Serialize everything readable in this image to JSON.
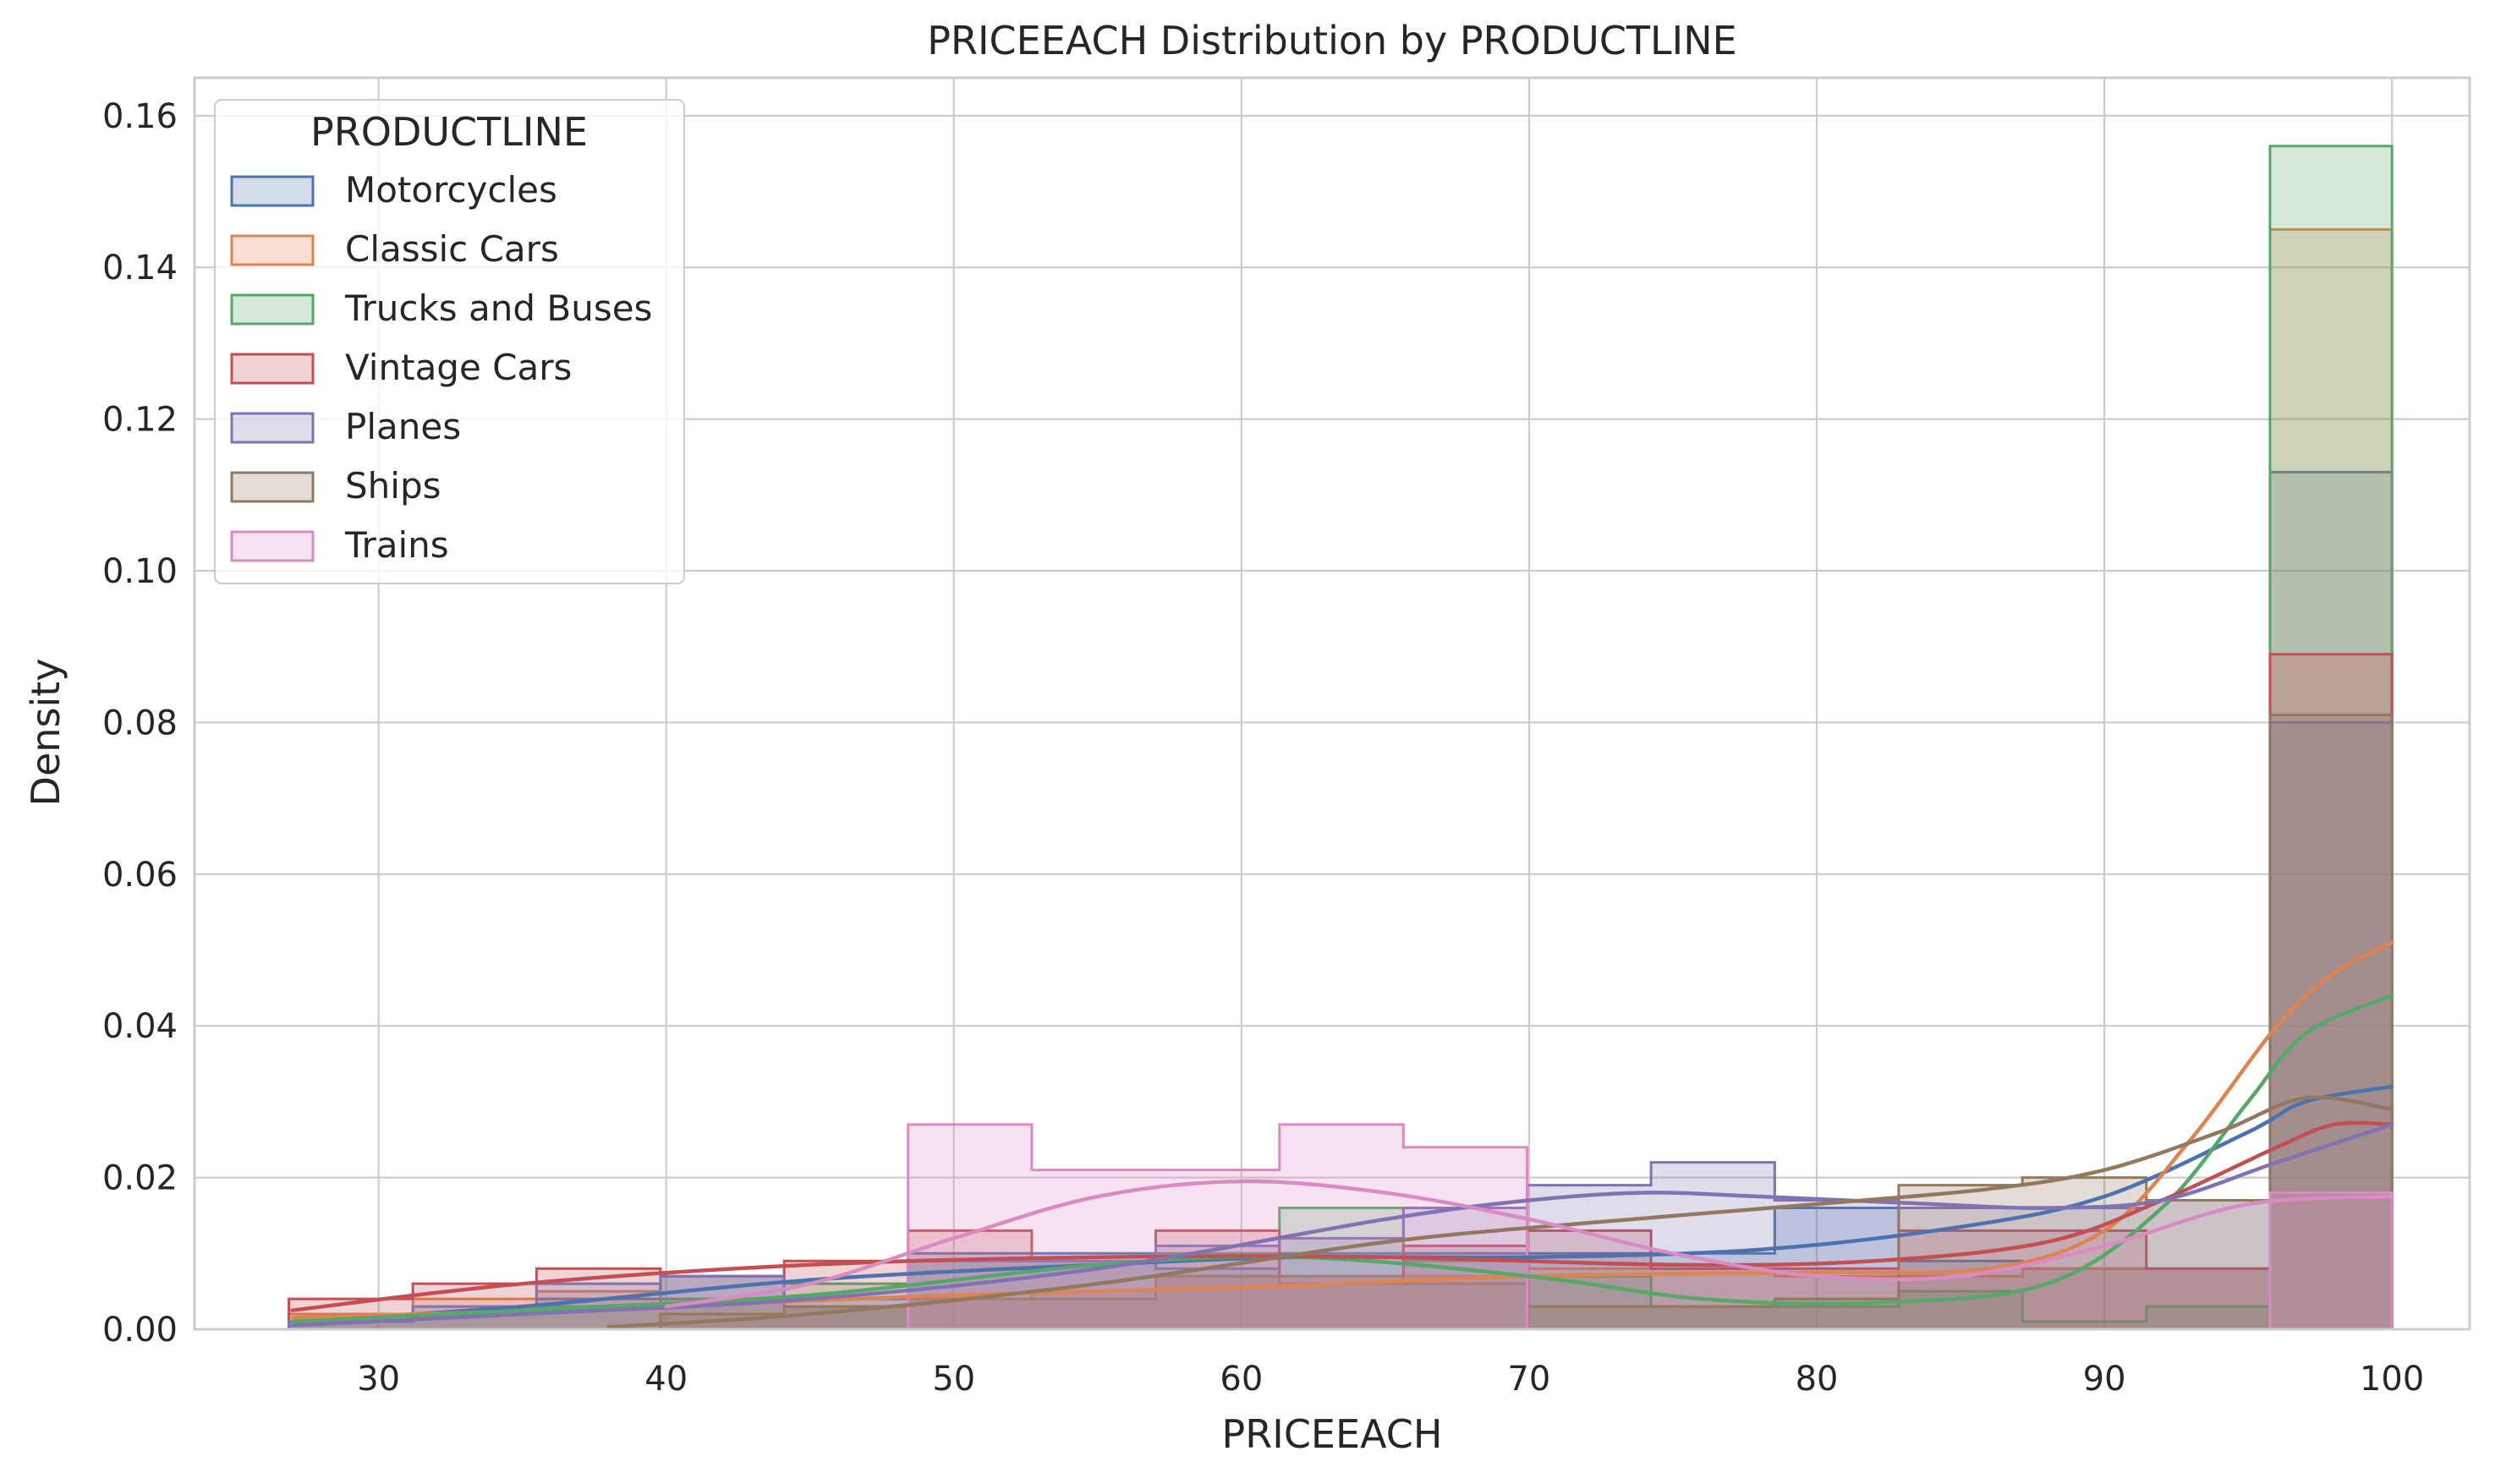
{
  "chart_data": {
    "type": "histogram",
    "title": "PRICEEACH Distribution by PRODUCTLINE",
    "xlabel": "PRICEEACH",
    "ylabel": "Density",
    "xlim": [
      23.6,
      102.7
    ],
    "ylim": [
      0,
      0.165
    ],
    "xticks": [
      30,
      40,
      50,
      60,
      70,
      80,
      90,
      100
    ],
    "xtick_labels": [
      "30",
      "40",
      "50",
      "60",
      "70",
      "80",
      "90",
      "100"
    ],
    "yticks": [
      0,
      0.02,
      0.04,
      0.06,
      0.08,
      0.1,
      0.12,
      0.14,
      0.16
    ],
    "ytick_labels": [
      "0.00",
      "0.02",
      "0.04",
      "0.06",
      "0.08",
      "0.10",
      "0.12",
      "0.14",
      "0.16"
    ],
    "grid": true,
    "legend": {
      "title": "PRODUCTLINE",
      "placement": "top-left"
    },
    "element": "step-filled",
    "kde": true,
    "bin_edges": [
      26.88,
      31.19,
      35.49,
      39.8,
      44.1,
      48.41,
      52.71,
      57.02,
      61.32,
      65.63,
      69.93,
      74.24,
      78.54,
      82.85,
      87.15,
      91.46,
      95.76,
      100.0
    ],
    "series": [
      {
        "name": "Motorcycles",
        "color": "#4c72b0",
        "density": [
          0.001,
          0.002,
          0.004,
          0.007,
          0.003,
          0.01,
          0.01,
          0.008,
          0.01,
          0.01,
          0.01,
          0.01,
          0.016,
          0.009,
          0.008,
          0.008,
          0.113
        ],
        "kde_x": [
          27,
          35,
          45,
          55,
          62,
          70,
          78,
          85,
          90,
          95,
          97,
          100
        ],
        "kde_y": [
          0.001,
          0.003,
          0.0065,
          0.0085,
          0.0095,
          0.0095,
          0.0105,
          0.0135,
          0.0175,
          0.026,
          0.03,
          0.032
        ]
      },
      {
        "name": "Classic Cars",
        "color": "#dd8452",
        "density": [
          0.002,
          0.004,
          0.005,
          0.004,
          0.003,
          0.004,
          0.005,
          0.007,
          0.006,
          0.007,
          0.008,
          0.008,
          0.007,
          0.007,
          0.008,
          0.008,
          0.145
        ],
        "kde_x": [
          27,
          40,
          50,
          60,
          70,
          80,
          86,
          90,
          93,
          96,
          98,
          100
        ],
        "kde_y": [
          0.0015,
          0.003,
          0.0045,
          0.0055,
          0.007,
          0.0075,
          0.008,
          0.013,
          0.025,
          0.04,
          0.047,
          0.051
        ]
      },
      {
        "name": "Trucks and Buses",
        "color": "#55a868",
        "density": [
          0.001,
          0.002,
          0.003,
          0.004,
          0.006,
          0.009,
          0.009,
          0.01,
          0.016,
          0.009,
          0.007,
          0.003,
          0.003,
          0.005,
          0.001,
          0.003,
          0.156
        ],
        "kde_x": [
          27,
          35,
          45,
          55,
          62,
          70,
          76,
          82,
          88,
          92,
          95,
          97,
          100
        ],
        "kde_y": [
          0.001,
          0.0025,
          0.0045,
          0.0085,
          0.0095,
          0.007,
          0.004,
          0.0035,
          0.006,
          0.016,
          0.03,
          0.039,
          0.044
        ]
      },
      {
        "name": "Vintage Cars",
        "color": "#c44e52",
        "density": [
          0.004,
          0.006,
          0.008,
          0.007,
          0.009,
          0.013,
          0.009,
          0.013,
          0.007,
          0.011,
          0.013,
          0.008,
          0.008,
          0.013,
          0.013,
          0.008,
          0.089
        ],
        "kde_x": [
          27,
          35,
          45,
          55,
          65,
          75,
          82,
          88,
          92,
          96,
          98,
          100
        ],
        "kde_y": [
          0.0025,
          0.006,
          0.0085,
          0.0095,
          0.0095,
          0.0085,
          0.009,
          0.0115,
          0.017,
          0.024,
          0.027,
          0.027
        ]
      },
      {
        "name": "Planes",
        "color": "#8172b3",
        "density": [
          0.001,
          0.003,
          0.006,
          0.007,
          0.004,
          0.009,
          0.009,
          0.011,
          0.012,
          0.016,
          0.019,
          0.022,
          0.017,
          0.016,
          0.016,
          0.017,
          0.08
        ],
        "kde_x": [
          27,
          35,
          45,
          55,
          65,
          70,
          74,
          78,
          84,
          88,
          92,
          96,
          100
        ],
        "kde_y": [
          0.0005,
          0.002,
          0.004,
          0.008,
          0.0145,
          0.017,
          0.018,
          0.0175,
          0.0165,
          0.016,
          0.017,
          0.022,
          0.027
        ]
      },
      {
        "name": "Ships",
        "color": "#937860",
        "density": [
          0.0,
          0.0,
          0.0,
          0.002,
          0.003,
          0.004,
          0.004,
          0.007,
          0.007,
          0.006,
          0.003,
          0.003,
          0.004,
          0.019,
          0.02,
          0.017,
          0.081
        ],
        "kde_x": [
          38,
          45,
          55,
          65,
          72,
          80,
          86,
          90,
          94,
          97,
          100
        ],
        "kde_y": [
          0.0003,
          0.002,
          0.006,
          0.0115,
          0.014,
          0.0165,
          0.0185,
          0.021,
          0.026,
          0.0305,
          0.029
        ]
      },
      {
        "name": "Trains",
        "color": "#da8bc3",
        "density": [
          0.0,
          0.0,
          0.0,
          0.0,
          0.0,
          0.027,
          0.021,
          0.021,
          0.027,
          0.024,
          0.0,
          0.0,
          0.0,
          0.0,
          0.0,
          0.0,
          0.018
        ],
        "kde_x": [
          40,
          45,
          50,
          55,
          60,
          65,
          70,
          75,
          80,
          85,
          90,
          95,
          100
        ],
        "kde_y": [
          0.003,
          0.006,
          0.012,
          0.0175,
          0.0195,
          0.018,
          0.0145,
          0.01,
          0.007,
          0.007,
          0.011,
          0.0165,
          0.0175
        ]
      }
    ]
  }
}
